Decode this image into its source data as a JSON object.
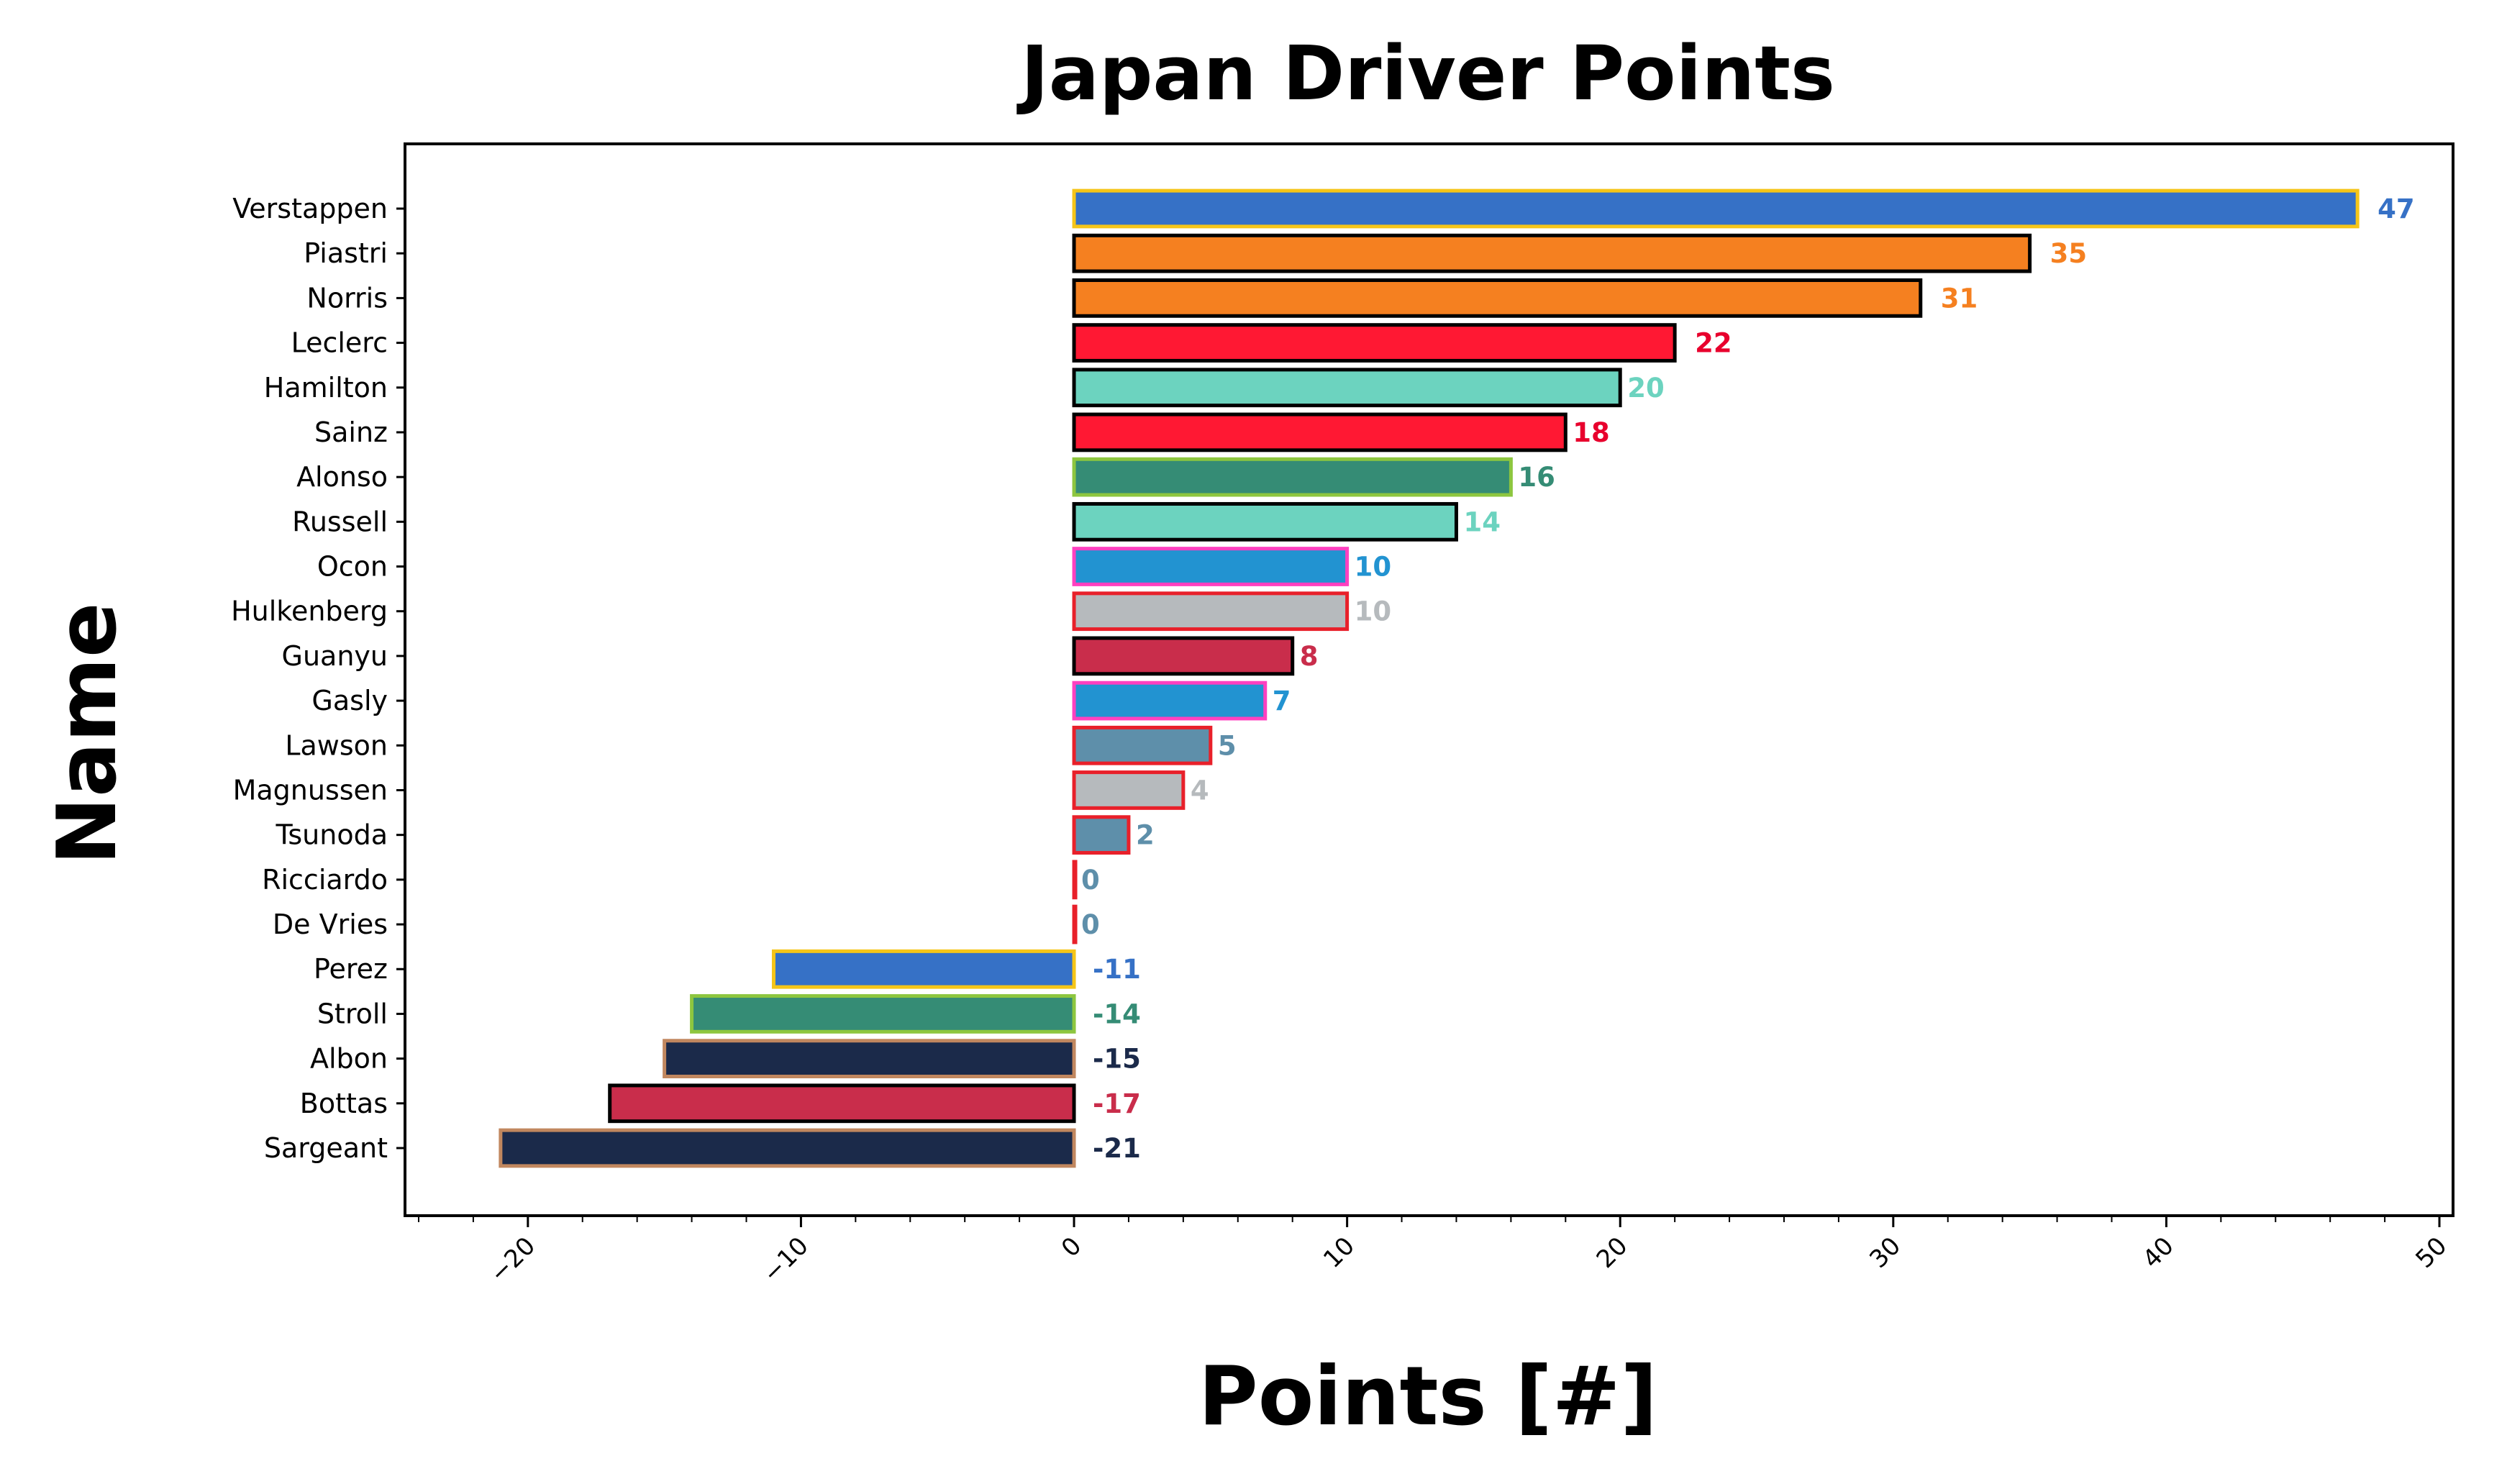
{
  "chart_data": {
    "type": "bar",
    "orientation": "horizontal",
    "title": "Japan Driver Points",
    "xlabel": "Points [#]",
    "ylabel": "Name",
    "xlim": [
      -24.5,
      50.5
    ],
    "xticks": [
      -20,
      -10,
      0,
      10,
      20,
      30,
      40,
      50
    ],
    "xtick_labels": [
      "−20",
      "−10",
      "0",
      "10",
      "20",
      "30",
      "40",
      "50"
    ],
    "grid": false,
    "bars": [
      {
        "name": "Verstappen",
        "value": 47,
        "label": "47",
        "fill": "#3671C6",
        "edge": "#F5C518",
        "text_color": "#3671C6"
      },
      {
        "name": "Piastri",
        "value": 35,
        "label": "35",
        "fill": "#F58020",
        "edge": "#000000",
        "text_color": "#F58020"
      },
      {
        "name": "Norris",
        "value": 31,
        "label": "31",
        "fill": "#F58020",
        "edge": "#000000",
        "text_color": "#F58020"
      },
      {
        "name": "Leclerc",
        "value": 22,
        "label": "22",
        "fill": "#FF1833",
        "edge": "#000000",
        "text_color": "#E8002D"
      },
      {
        "name": "Hamilton",
        "value": 20,
        "label": "20",
        "fill": "#6CD3BF",
        "edge": "#000000",
        "text_color": "#6CD3BF"
      },
      {
        "name": "Sainz",
        "value": 18,
        "label": "18",
        "fill": "#FF1833",
        "edge": "#000000",
        "text_color": "#E8002D"
      },
      {
        "name": "Alonso",
        "value": 16,
        "label": "16",
        "fill": "#358C75",
        "edge": "#8DC63F",
        "text_color": "#358C75"
      },
      {
        "name": "Russell",
        "value": 14,
        "label": "14",
        "fill": "#6CD3BF",
        "edge": "#000000",
        "text_color": "#6CD3BF"
      },
      {
        "name": "Ocon",
        "value": 10,
        "label": "10",
        "fill": "#2293D1",
        "edge": "#FF40C0",
        "text_color": "#2293D1"
      },
      {
        "name": "Hulkenberg",
        "value": 10,
        "label": "10",
        "fill": "#B6BABD",
        "edge": "#E8202A",
        "text_color": "#B6BABD"
      },
      {
        "name": "Guanyu",
        "value": 8,
        "label": "8",
        "fill": "#C92D4B",
        "edge": "#000000",
        "text_color": "#C92D4B"
      },
      {
        "name": "Gasly",
        "value": 7,
        "label": "7",
        "fill": "#2293D1",
        "edge": "#FF40C0",
        "text_color": "#2293D1"
      },
      {
        "name": "Lawson",
        "value": 5,
        "label": "5",
        "fill": "#5E8FAA",
        "edge": "#E8202A",
        "text_color": "#5E8FAA"
      },
      {
        "name": "Magnussen",
        "value": 4,
        "label": "4",
        "fill": "#B6BABD",
        "edge": "#E8202A",
        "text_color": "#B6BABD"
      },
      {
        "name": "Tsunoda",
        "value": 2,
        "label": "2",
        "fill": "#5E8FAA",
        "edge": "#E8202A",
        "text_color": "#5E8FAA"
      },
      {
        "name": "Ricciardo",
        "value": 0,
        "label": "0",
        "fill": "#5E8FAA",
        "edge": "#E8202A",
        "text_color": "#5E8FAA"
      },
      {
        "name": "De Vries",
        "value": 0,
        "label": "0",
        "fill": "#5E8FAA",
        "edge": "#E8202A",
        "text_color": "#5E8FAA"
      },
      {
        "name": "Perez",
        "value": -11,
        "label": "-11",
        "fill": "#3671C6",
        "edge": "#F5C518",
        "text_color": "#3671C6"
      },
      {
        "name": "Stroll",
        "value": -14,
        "label": "-14",
        "fill": "#358C75",
        "edge": "#8DC63F",
        "text_color": "#358C75"
      },
      {
        "name": "Albon",
        "value": -15,
        "label": "-15",
        "fill": "#1B2A4A",
        "edge": "#C1875F",
        "text_color": "#1B2A4A"
      },
      {
        "name": "Bottas",
        "value": -17,
        "label": "-17",
        "fill": "#C92D4B",
        "edge": "#000000",
        "text_color": "#C92D4B"
      },
      {
        "name": "Sargeant",
        "value": -21,
        "label": "-21",
        "fill": "#1B2A4A",
        "edge": "#C1875F",
        "text_color": "#1B2A4A"
      }
    ]
  }
}
